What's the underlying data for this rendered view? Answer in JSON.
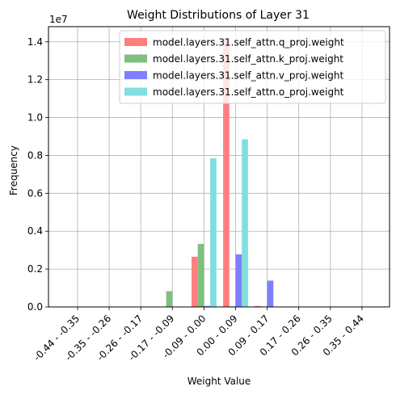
{
  "chart_data": {
    "type": "bar",
    "title": "Weight Distributions of Layer 31",
    "xlabel": "Weight Value",
    "ylabel": "Frequency",
    "y_multiplier_label": "1e7",
    "ylim": [
      0,
      1.48
    ],
    "yticks": [
      0.0,
      0.2,
      0.4,
      0.6,
      0.8,
      1.0,
      1.2,
      1.4
    ],
    "ytick_labels": [
      "0.0",
      "0.2",
      "0.4",
      "0.6",
      "0.8",
      "1.0",
      "1.2",
      "1.4"
    ],
    "grid": true,
    "legend_position": "top-right",
    "categories": [
      "-0.44 - -0.35",
      "-0.35 - -0.26",
      "-0.26 - -0.17",
      "-0.17 - -0.09",
      "-0.09 - 0.00",
      "0.00 - 0.09",
      "0.09 - 0.17",
      "0.17 - 0.26",
      "0.26 - 0.35",
      "0.35 - 0.44"
    ],
    "series": [
      {
        "name": "model.layers.31.self_attn.q_proj.weight",
        "color": "#ff7f7f",
        "values": [
          0,
          0,
          0,
          0,
          0.265,
          1.42,
          0.005,
          0,
          0,
          0
        ]
      },
      {
        "name": "model.layers.31.self_attn.k_proj.weight",
        "color": "#7fbf7f",
        "values": [
          0,
          0,
          0,
          0.083,
          0.333,
          0.003,
          0,
          0,
          0,
          0
        ]
      },
      {
        "name": "model.layers.31.self_attn.v_proj.weight",
        "color": "#7f7fff",
        "values": [
          0,
          0,
          0,
          0,
          0.005,
          0.278,
          0.139,
          0,
          0,
          0
        ]
      },
      {
        "name": "model.layers.31.self_attn.o_proj.weight",
        "color": "#7fdfdf",
        "values": [
          0,
          0,
          0,
          0,
          0.785,
          0.885,
          0,
          0,
          0,
          0
        ]
      }
    ]
  }
}
